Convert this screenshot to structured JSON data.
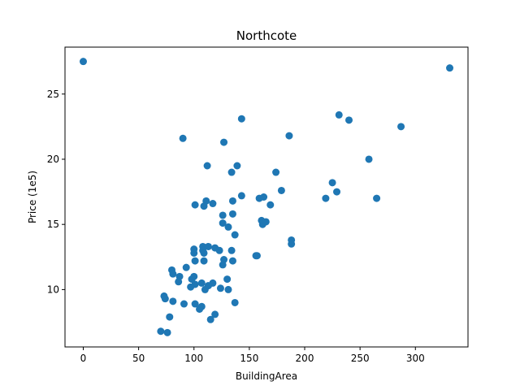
{
  "chart_data": {
    "type": "scatter",
    "title": "Northcote",
    "xlabel": "BuildingArea",
    "ylabel": "Price (1e5)",
    "xlim": [
      -16.5,
      347.5
    ],
    "ylim": [
      5.6,
      28.6
    ],
    "xticks": [
      0,
      50,
      100,
      150,
      200,
      250,
      300
    ],
    "yticks": [
      10,
      15,
      20,
      25
    ],
    "grid": false,
    "legend": "none",
    "color": "#1f77b4",
    "series": [
      {
        "x": [
          0,
          331,
          90,
          127,
          143,
          186,
          231,
          240,
          287,
          258,
          112,
          139,
          134,
          174,
          229,
          225,
          219,
          265,
          179,
          101,
          111,
          117,
          109,
          143,
          135,
          159,
          163,
          157,
          169,
          126,
          126,
          135,
          162,
          161,
          165,
          131,
          137,
          188,
          188,
          156,
          100,
          108,
          108,
          113,
          119,
          123,
          134,
          100,
          109,
          101,
          109,
          127,
          126,
          135,
          93,
          80,
          87,
          81,
          98,
          100,
          86,
          101,
          107,
          97,
          113,
          117,
          130,
          124,
          110,
          131,
          73,
          74,
          81,
          91,
          101,
          107,
          105,
          119,
          137,
          78,
          115,
          70,
          76
        ],
        "y": [
          27.5,
          27.0,
          21.6,
          21.3,
          23.1,
          21.8,
          23.4,
          23.0,
          22.5,
          20.0,
          19.5,
          19.5,
          19.0,
          19.0,
          17.5,
          18.2,
          17.0,
          17.0,
          17.6,
          16.5,
          16.8,
          16.6,
          16.4,
          17.2,
          16.8,
          17.0,
          17.1,
          12.6,
          16.5,
          15.7,
          15.1,
          15.8,
          15.0,
          15.3,
          15.2,
          14.8,
          14.2,
          13.8,
          13.5,
          12.6,
          13.1,
          13.3,
          13.0,
          13.3,
          13.2,
          13.0,
          13.0,
          12.8,
          12.8,
          12.2,
          12.2,
          12.3,
          11.9,
          12.2,
          11.7,
          11.5,
          11.0,
          11.2,
          10.8,
          11.0,
          10.6,
          10.4,
          10.5,
          10.2,
          10.3,
          10.5,
          10.8,
          10.1,
          10.0,
          10.0,
          9.5,
          9.3,
          9.1,
          8.9,
          8.9,
          8.7,
          8.5,
          8.1,
          9.0,
          7.9,
          7.7,
          6.8,
          6.7
        ]
      }
    ]
  }
}
